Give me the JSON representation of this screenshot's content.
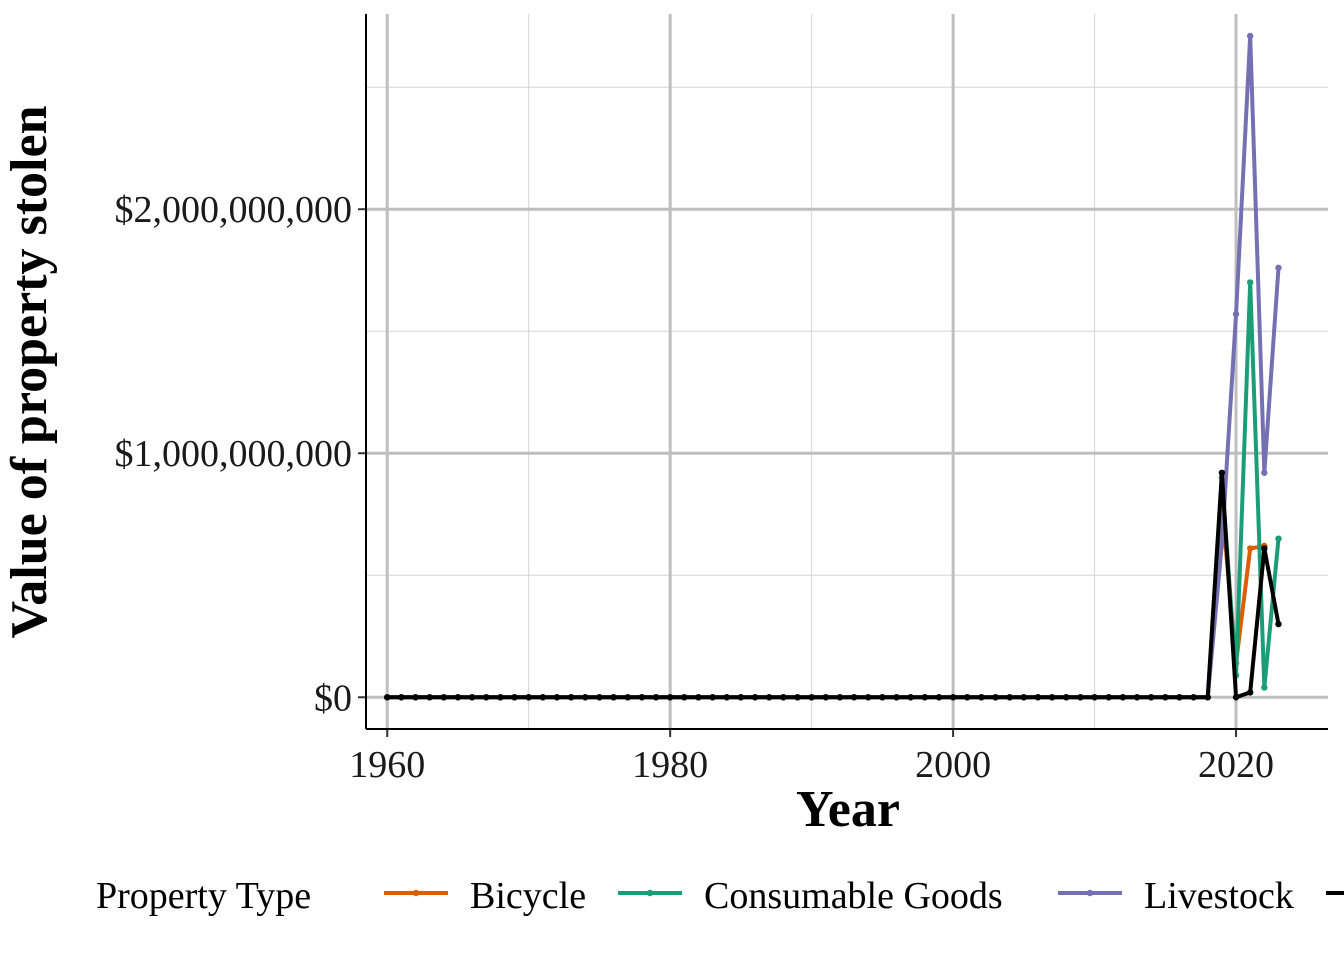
{
  "chart_data": {
    "type": "line",
    "xlabel": "Year",
    "ylabel": "Value of property stolen",
    "xlim": [
      1958.5,
      2026.5
    ],
    "ylim": [
      -130000000,
      2800000000
    ],
    "x_ticks": [
      1960,
      1980,
      2000,
      2020
    ],
    "x_tick_labels": [
      "1960",
      "1980",
      "2000",
      "2020"
    ],
    "y_ticks": [
      0,
      1000000000,
      2000000000
    ],
    "y_tick_labels": [
      "$0",
      "$1,000,000,000",
      "$2,000,000,000"
    ],
    "grid": true,
    "legend_position": "bottom",
    "legend_title": "Property Type",
    "x": [
      1960,
      1961,
      1962,
      1963,
      1964,
      1965,
      1966,
      1967,
      1968,
      1969,
      1970,
      1971,
      1972,
      1973,
      1974,
      1975,
      1976,
      1977,
      1978,
      1979,
      1980,
      1981,
      1982,
      1983,
      1984,
      1985,
      1986,
      1987,
      1988,
      1989,
      1990,
      1991,
      1992,
      1993,
      1994,
      1995,
      1996,
      1997,
      1998,
      1999,
      2000,
      2001,
      2002,
      2003,
      2004,
      2005,
      2006,
      2007,
      2008,
      2009,
      2010,
      2011,
      2012,
      2013,
      2014,
      2015,
      2016,
      2017,
      2018,
      2019,
      2020,
      2021,
      2022,
      2023
    ],
    "series": [
      {
        "name": "Bicycle",
        "color": "#D95F02",
        "values": [
          0,
          0,
          0,
          0,
          0,
          0,
          0,
          0,
          0,
          0,
          0,
          0,
          0,
          0,
          0,
          0,
          0,
          0,
          0,
          0,
          0,
          0,
          0,
          0,
          0,
          0,
          0,
          0,
          0,
          0,
          0,
          0,
          0,
          0,
          0,
          0,
          0,
          0,
          0,
          0,
          0,
          0,
          0,
          0,
          0,
          0,
          0,
          0,
          0,
          0,
          0,
          0,
          0,
          0,
          0,
          0,
          0,
          0,
          0,
          790000000,
          140000000,
          610000000,
          620000000,
          null
        ]
      },
      {
        "name": "Consumable Goods",
        "color": "#1B9E77",
        "values": [
          0,
          0,
          0,
          0,
          0,
          0,
          0,
          0,
          0,
          0,
          0,
          0,
          0,
          0,
          0,
          0,
          0,
          0,
          0,
          0,
          0,
          0,
          0,
          0,
          0,
          0,
          0,
          0,
          0,
          0,
          0,
          0,
          0,
          0,
          0,
          0,
          0,
          0,
          0,
          0,
          0,
          0,
          0,
          0,
          0,
          0,
          0,
          0,
          0,
          0,
          0,
          0,
          0,
          0,
          0,
          0,
          0,
          0,
          0,
          900000000,
          90000000,
          1700000000,
          40000000,
          650000000
        ]
      },
      {
        "name": "Livestock",
        "color": "#7570B3",
        "values": [
          0,
          0,
          0,
          0,
          0,
          0,
          0,
          0,
          0,
          0,
          0,
          0,
          0,
          0,
          0,
          0,
          0,
          0,
          0,
          0,
          0,
          0,
          0,
          0,
          0,
          0,
          0,
          0,
          0,
          0,
          0,
          0,
          0,
          0,
          0,
          0,
          0,
          0,
          0,
          0,
          0,
          0,
          0,
          0,
          0,
          0,
          0,
          0,
          0,
          0,
          0,
          0,
          0,
          0,
          0,
          0,
          0,
          0,
          0,
          630000000,
          1570000000,
          2710000000,
          920000000,
          1760000000
        ]
      },
      {
        "name": "",
        "color": "#000000",
        "values": [
          0,
          0,
          0,
          0,
          0,
          0,
          0,
          0,
          0,
          0,
          0,
          0,
          0,
          0,
          0,
          0,
          0,
          0,
          0,
          0,
          0,
          0,
          0,
          0,
          0,
          0,
          0,
          0,
          0,
          0,
          0,
          0,
          0,
          0,
          0,
          0,
          0,
          0,
          0,
          0,
          0,
          0,
          0,
          0,
          0,
          0,
          0,
          0,
          0,
          0,
          0,
          0,
          0,
          0,
          0,
          0,
          0,
          0,
          0,
          920000000,
          0,
          20000000,
          610000000,
          300000000
        ]
      }
    ]
  }
}
